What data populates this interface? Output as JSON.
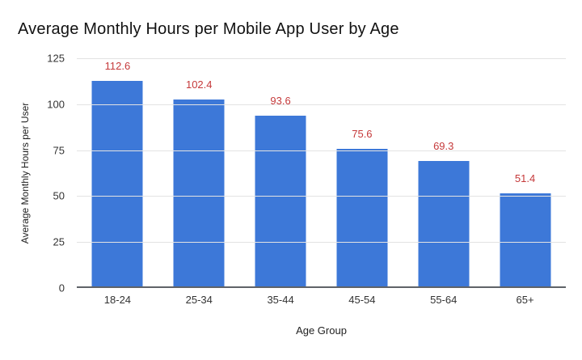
{
  "chart_data": {
    "type": "bar",
    "title": "Average Monthly Hours per Mobile App User by Age",
    "xlabel": "Age Group",
    "ylabel": "Average Monthly Hours per User",
    "categories": [
      "18-24",
      "25-34",
      "35-44",
      "45-54",
      "55-64",
      "65+"
    ],
    "values": [
      112.6,
      102.4,
      93.6,
      75.6,
      69.3,
      51.4
    ],
    "value_labels": [
      "112.6",
      "102.4",
      "93.6",
      "75.6",
      "69.3",
      "51.4"
    ],
    "ylim": [
      0,
      125
    ],
    "yticks": [
      0,
      25,
      50,
      75,
      100,
      125
    ],
    "grid": true,
    "legend": "none",
    "colors": {
      "bar": "#3d78d8",
      "value_label": "#c5393a",
      "gridline": "#e3e3e3",
      "axis_line": "#5f6368",
      "background": "#ffffff"
    }
  }
}
